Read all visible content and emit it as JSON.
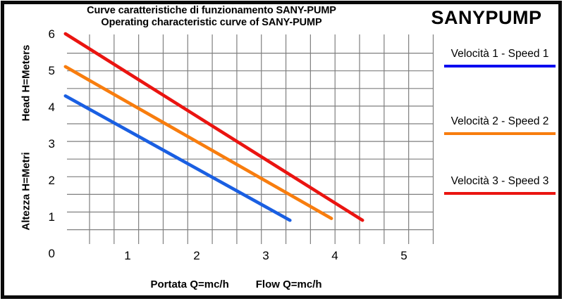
{
  "header": {
    "title_line1": "Curve caratteristiche di funzionamento SANY-PUMP",
    "title_line2": "Operating characteristic curve of SANY-PUMP",
    "brand": "SANYPUMP"
  },
  "legend": {
    "position": "right",
    "items": [
      {
        "label": "Velocità 1 - Speed 1",
        "color": "#0b0bf0"
      },
      {
        "label": "Velocità 2 - Speed 2",
        "color": "#f87d0e"
      },
      {
        "label": "Velocità 3 - Speed 3",
        "color": "#ea1410"
      }
    ]
  },
  "chart_data": {
    "type": "line",
    "title": "Curve caratteristiche di funzionamento SANY-PUMP / Operating characteristic curve of SANY-PUMP",
    "xlabel_it": "Portata Q=mc/h",
    "xlabel_en": "Flow Q=mc/h",
    "ylabel_en": "Head H=Meters",
    "ylabel_it": "Altezza H=Metri",
    "xlim": [
      0,
      5
    ],
    "ylim": [
      0,
      6
    ],
    "x_ticks": [
      0,
      1,
      2,
      3,
      4,
      5
    ],
    "y_ticks": [
      0,
      1,
      2,
      3,
      4,
      5,
      6
    ],
    "grid": {
      "shown": true,
      "vertical_lines": 15,
      "horizontal_lines": 11,
      "color": "#7f7f7f"
    },
    "series": [
      {
        "name": "Velocità 1 - Speed 1",
        "speed": 1,
        "color": "#1a5fe2",
        "points": [
          [
            0.1,
            4.3
          ],
          [
            3.35,
            0.9
          ]
        ]
      },
      {
        "name": "Velocità 2 - Speed 2",
        "speed": 2,
        "color": "#f87d0e",
        "points": [
          [
            0.1,
            5.1
          ],
          [
            3.95,
            0.95
          ]
        ]
      },
      {
        "name": "Velocità 3 - Speed 3",
        "speed": 3,
        "color": "#ea1410",
        "points": [
          [
            0.1,
            6.0
          ],
          [
            4.4,
            0.9
          ]
        ]
      }
    ]
  }
}
